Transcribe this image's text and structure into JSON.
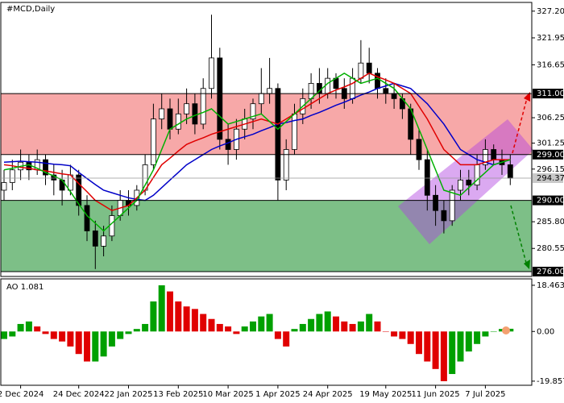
{
  "chart_data": [
    {
      "type": "candlestick",
      "title": "#MCD,Daily",
      "categories": [
        null,
        null,
        "2 Dec 2024",
        null,
        null,
        null,
        null,
        null,
        null,
        "24 Dec 2024",
        null,
        null,
        null,
        null,
        null,
        "22 Jan 2025",
        null,
        null,
        null,
        null,
        null,
        "13 Feb 2025",
        null,
        null,
        null,
        null,
        null,
        "10 Mar 2025",
        null,
        null,
        null,
        null,
        null,
        "1 Apr 2025",
        null,
        null,
        null,
        null,
        null,
        "24 Apr 2025",
        null,
        null,
        null,
        null,
        null,
        null,
        "19 May 2025",
        null,
        null,
        null,
        null,
        null,
        "11 Jun 2025",
        null,
        null,
        null,
        null,
        null,
        "7 Jul 2025",
        null,
        null,
        null
      ],
      "open": [
        292,
        293.5,
        296,
        297.5,
        296,
        298,
        295,
        294,
        292,
        295,
        289,
        284,
        281,
        283,
        287,
        290,
        289,
        292,
        297,
        306,
        308,
        304,
        307,
        309,
        305,
        312,
        318,
        302,
        300,
        304,
        306,
        309,
        311,
        312,
        294,
        300,
        307,
        310,
        313,
        311,
        314,
        312,
        310,
        314,
        317,
        315,
        312,
        311,
        310,
        308,
        302,
        298,
        291,
        288,
        286,
        292,
        294,
        293,
        297,
        300,
        298,
        297
      ],
      "high": [
        296,
        298,
        300,
        299,
        300,
        299,
        297,
        296,
        297,
        296,
        291,
        286,
        285,
        289,
        292,
        292,
        293,
        299,
        309,
        311,
        310,
        310,
        312,
        311,
        314,
        326.5,
        320,
        305,
        306,
        308,
        310,
        316,
        318,
        313,
        302,
        309,
        312,
        315,
        316,
        316,
        315,
        314,
        316,
        321.5,
        320,
        316,
        314,
        313,
        311,
        309,
        304,
        300,
        293,
        290,
        293,
        296,
        296,
        299,
        302,
        301,
        300,
        299
      ],
      "low": [
        290,
        292,
        294,
        294,
        295,
        293,
        291,
        289,
        291,
        287,
        282,
        276.5,
        279,
        282,
        286,
        287,
        288,
        291,
        296,
        304,
        302,
        303,
        305,
        303,
        304,
        310,
        300,
        297,
        298,
        302,
        304,
        307,
        309,
        290,
        292,
        299,
        305,
        308,
        309,
        310,
        310,
        308,
        309,
        313,
        313,
        310,
        309,
        308,
        306,
        299,
        296,
        288,
        285,
        283.5,
        285,
        290,
        291,
        292,
        296,
        297,
        295,
        293
      ],
      "close": [
        293.5,
        296,
        297.5,
        296,
        298,
        295,
        294,
        292,
        295,
        289,
        284,
        281,
        283,
        287,
        290,
        289,
        292,
        297,
        306,
        308,
        304,
        307,
        309,
        305,
        312,
        318,
        302,
        300,
        304,
        306,
        309,
        311,
        312,
        294,
        300,
        307,
        310,
        313,
        311,
        314,
        312,
        310,
        314,
        317,
        315,
        312,
        311,
        310,
        308,
        302,
        298,
        291,
        288,
        286,
        292,
        294,
        293,
        297,
        300,
        298,
        297,
        294.37
      ],
      "up_color": "#ffffff",
      "down_color": "#000000",
      "lines": [
        {
          "color": "#0000c8",
          "values": [
            297.5,
            297.6,
            297.7,
            297.6,
            297.5,
            297.3,
            297.1,
            297,
            296.8,
            295.5,
            294.3,
            293.1,
            292,
            291.5,
            291,
            290.5,
            290.2,
            290,
            291,
            292.5,
            294,
            295.5,
            297,
            298,
            299,
            300,
            300.7,
            301.3,
            302,
            302.5,
            303,
            303.7,
            304.3,
            305,
            305.3,
            305.7,
            306,
            306.7,
            307.3,
            308,
            308.7,
            309.3,
            310,
            310.7,
            311.3,
            312,
            312.5,
            313,
            312.5,
            312,
            310.5,
            309,
            307,
            305,
            302.5,
            300,
            299,
            298,
            297.5,
            297,
            297.5,
            298
          ]
        },
        {
          "color": "#e00000",
          "values": [
            297,
            296.8,
            296.5,
            296.3,
            296,
            295.8,
            295.5,
            295.2,
            295,
            293.3,
            291.7,
            290,
            289,
            288,
            288.5,
            289,
            290.5,
            292,
            294.5,
            297,
            298.3,
            299.7,
            301,
            301.7,
            302.3,
            303,
            303.5,
            304,
            304.5,
            305,
            305.5,
            306,
            305.5,
            305,
            306,
            307,
            308,
            309,
            310,
            311,
            311.7,
            312.3,
            313,
            314,
            315,
            314.3,
            313.7,
            313,
            312,
            311,
            308.5,
            306,
            303,
            300,
            298.5,
            297,
            297,
            297,
            297.5,
            298,
            298,
            298
          ]
        },
        {
          "color": "#00b000",
          "values": [
            296,
            296.3,
            296.7,
            297,
            296.3,
            295.5,
            294.8,
            294,
            291.7,
            289.3,
            287,
            285.5,
            284,
            285.5,
            287,
            288.5,
            290,
            293,
            296,
            300,
            304,
            305,
            306,
            306.7,
            307.3,
            308,
            306.5,
            305,
            305.5,
            306,
            306.5,
            307,
            305.5,
            304,
            305.5,
            307,
            308.5,
            310,
            311.5,
            313,
            314,
            315,
            314,
            313,
            313.5,
            314,
            313,
            312,
            310,
            308,
            304,
            300,
            296,
            292,
            291.5,
            291,
            292.5,
            294,
            295.5,
            297,
            297.5,
            298
          ]
        }
      ],
      "zones": [
        {
          "range": [
            299,
            311
          ],
          "color": "#f7a8a8"
        },
        {
          "range": [
            276,
            290
          ],
          "color": "#7dbf87"
        }
      ],
      "levels": [
        {
          "value": 311,
          "label": "311.00"
        },
        {
          "value": 299,
          "label": "299.00"
        },
        {
          "value": 290,
          "label": "290.00"
        },
        {
          "value": 276,
          "label": "276.00"
        }
      ],
      "ylim": [
        275.2,
        328.6
      ],
      "yticks": [
        {
          "value": 327.2,
          "label": "327.20"
        },
        321.95,
        316.65,
        306.25,
        301.25,
        296.15,
        {
          "value": 285.8,
          "label": "285.80"
        },
        280.55
      ]
    },
    {
      "type": "histogram",
      "title": "AO",
      "values": [
        -3,
        -2,
        3,
        4,
        2,
        -1,
        -3,
        -4,
        -6,
        -9,
        -12,
        -12,
        -10,
        -6,
        -3,
        -1,
        1,
        3,
        12,
        18.46,
        16,
        12,
        10,
        9,
        7,
        5,
        3,
        2,
        -1,
        2,
        4,
        6,
        7,
        -3,
        -6,
        1,
        3,
        5,
        7,
        8,
        6,
        4,
        3,
        4,
        7,
        4,
        0,
        -2,
        -3,
        -5,
        -9,
        -12,
        -15,
        -19.86,
        -17,
        -12,
        -8,
        -5,
        -2,
        0,
        1,
        1.081
      ],
      "up_color": "#00a000",
      "down_color": "#e00000",
      "ylim": [
        -21.5,
        20.7
      ],
      "yticks": [
        18.463,
        {
          "value": 0,
          "label": "0.00"
        },
        -19.857
      ]
    }
  ]
}
